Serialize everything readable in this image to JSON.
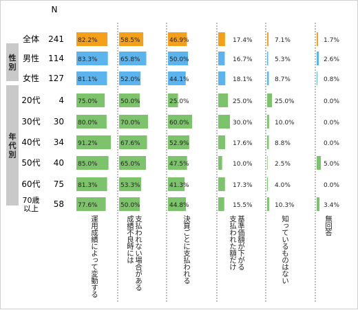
{
  "chart_data": {
    "type": "bar",
    "n_header": "N",
    "groups": [
      {
        "label": "",
        "rows": [
          0
        ]
      },
      {
        "label": "性別",
        "rows": [
          1,
          2
        ]
      },
      {
        "label": "年代別",
        "rows": [
          3,
          4,
          5,
          6,
          7,
          8
        ]
      }
    ],
    "rows": [
      {
        "label": "全体",
        "n": 241,
        "category": "total"
      },
      {
        "label": "男性",
        "n": 114,
        "category": "gender"
      },
      {
        "label": "女性",
        "n": 127,
        "category": "gender"
      },
      {
        "label": "20代",
        "n": 4,
        "category": "age"
      },
      {
        "label": "30代",
        "n": 30,
        "category": "age"
      },
      {
        "label": "40代",
        "n": 34,
        "category": "age"
      },
      {
        "label": "50代",
        "n": 40,
        "category": "age"
      },
      {
        "label": "60代",
        "n": 75,
        "category": "age"
      },
      {
        "label": "70歳\n以上",
        "n": 58,
        "category": "age"
      }
    ],
    "series": [
      {
        "name": "運用成績によって変動する",
        "values": [
          82.2,
          83.3,
          81.1,
          75.0,
          80.0,
          91.2,
          85.0,
          81.3,
          77.6
        ]
      },
      {
        "name": "支払われない場合がある\n成績不良時には",
        "values": [
          58.5,
          65.8,
          52.0,
          50.0,
          70.0,
          67.6,
          65.0,
          53.3,
          50.0
        ]
      },
      {
        "name": "決算ごとに支払われる",
        "values": [
          46.9,
          50.0,
          44.1,
          25.0,
          60.0,
          52.9,
          47.5,
          41.3,
          44.8
        ]
      },
      {
        "name": "基準価額が下がる\n支払われた額だけ",
        "values": [
          17.4,
          16.7,
          18.1,
          25.0,
          30.0,
          17.6,
          10.0,
          17.3,
          15.5
        ]
      },
      {
        "name": "知っているものはない",
        "values": [
          7.1,
          5.3,
          8.7,
          25.0,
          10.0,
          8.8,
          2.5,
          4.0,
          10.3
        ]
      },
      {
        "name": "無回答",
        "values": [
          1.7,
          2.6,
          0.8,
          0.0,
          0.0,
          0.0,
          5.0,
          0.0,
          3.4
        ]
      }
    ],
    "colors": {
      "total": "#f5a01a",
      "gender": "#5bb4ee",
      "age": "#7dc36b",
      "group_box": "#c9c9c9",
      "divider": "#555555"
    },
    "value_format": "0.0%"
  }
}
